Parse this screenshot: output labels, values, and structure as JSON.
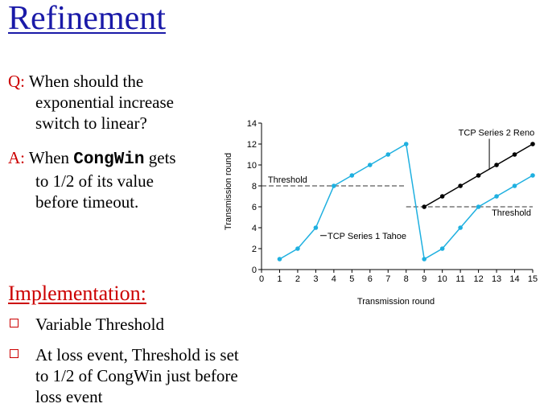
{
  "slide": {
    "title": "Refinement",
    "q_label": "Q:",
    "q_lines": [
      "When should the",
      "exponential increase",
      "switch to linear?"
    ],
    "a_label": "A:",
    "a_line1_pre": "When ",
    "a_code": "CongWin",
    "a_line1_post": " gets",
    "a_lines": [
      "to 1/2 of its value",
      "before timeout."
    ],
    "impl_heading": "Implementation:",
    "bullets": [
      {
        "lines": [
          "Variable Threshold"
        ]
      },
      {
        "lines": [
          "At loss event, Threshold is set",
          "to 1/2 of CongWin just before",
          "loss event"
        ]
      }
    ]
  },
  "chart_data": {
    "type": "line",
    "xlabel": "Transmission round",
    "ylabel": "Transmission round",
    "xlim": [
      0,
      15
    ],
    "ylim": [
      0,
      14
    ],
    "x_ticks": [
      "0",
      "1",
      "2",
      "3",
      "4",
      "5",
      "6",
      "7",
      "8",
      "9",
      "10",
      "11",
      "12",
      "13",
      "14",
      "15"
    ],
    "y_ticks": [
      "0",
      "2",
      "4",
      "6",
      "8",
      "10",
      "12",
      "14"
    ],
    "series": [
      {
        "name": "TCP Series 1 Tahoe",
        "color": "#1fb0e0",
        "x": [
          1,
          2,
          3,
          4,
          5,
          6,
          7,
          8,
          9,
          10,
          11,
          12,
          13,
          14,
          15
        ],
        "y": [
          1,
          2,
          4,
          8,
          9,
          10,
          11,
          12,
          1,
          2,
          4,
          6,
          7,
          8,
          9
        ]
      },
      {
        "name": "TCP Series 2 Reno",
        "color": "#000000",
        "x": [
          9,
          10,
          11,
          12,
          13,
          14,
          15
        ],
        "y": [
          6,
          7,
          8,
          9,
          10,
          11,
          12
        ]
      }
    ],
    "threshold_lines": [
      {
        "label": "Threshold",
        "y": 8,
        "x_range": [
          0,
          8
        ]
      },
      {
        "label": "Threshold",
        "y": 6,
        "x_range": [
          8,
          15
        ]
      }
    ]
  }
}
